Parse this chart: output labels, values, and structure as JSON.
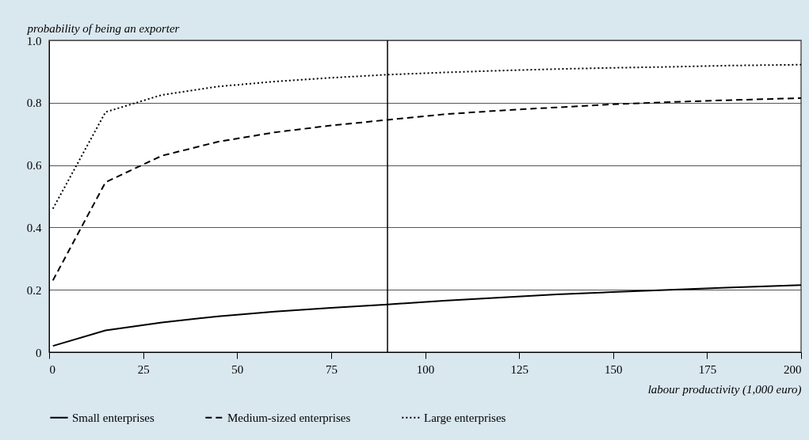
{
  "chart_data": {
    "type": "line",
    "ylabel": "probability of being an exporter",
    "xlabel": "labour productivity (1,000 euro)",
    "x": [
      1,
      15,
      30,
      45,
      60,
      75,
      90,
      105,
      120,
      135,
      150,
      165,
      180,
      200
    ],
    "series": [
      {
        "name": "Small enterprises",
        "color": "#000000",
        "line_style": "solid",
        "values": [
          0.02,
          0.07,
          0.095,
          0.115,
          0.13,
          0.142,
          0.153,
          0.165,
          0.175,
          0.185,
          0.193,
          0.2,
          0.207,
          0.215
        ]
      },
      {
        "name": "Medium-sized enterprises",
        "color": "#000000",
        "line_style": "dashed",
        "values": [
          0.23,
          0.545,
          0.63,
          0.675,
          0.705,
          0.727,
          0.745,
          0.763,
          0.775,
          0.785,
          0.795,
          0.802,
          0.808,
          0.815
        ]
      },
      {
        "name": "Large enterprises",
        "color": "#000000",
        "line_style": "dotted",
        "values": [
          0.46,
          0.77,
          0.825,
          0.852,
          0.868,
          0.88,
          0.89,
          0.897,
          0.903,
          0.908,
          0.912,
          0.915,
          0.919,
          0.922
        ]
      }
    ],
    "xlim": [
      0,
      200
    ],
    "xticks": [
      0,
      25,
      50,
      75,
      100,
      125,
      150,
      175,
      200
    ],
    "ylim": [
      0,
      1
    ],
    "yticks": [
      0,
      0.2,
      0.4,
      0.6,
      0.8,
      {
        "value": 1,
        "label": "1.0"
      }
    ],
    "ref_lines": [
      {
        "axis": "x",
        "value": 90,
        "color": "#000000"
      }
    ],
    "grid": "y",
    "legend": "bottom",
    "marker": "none"
  }
}
